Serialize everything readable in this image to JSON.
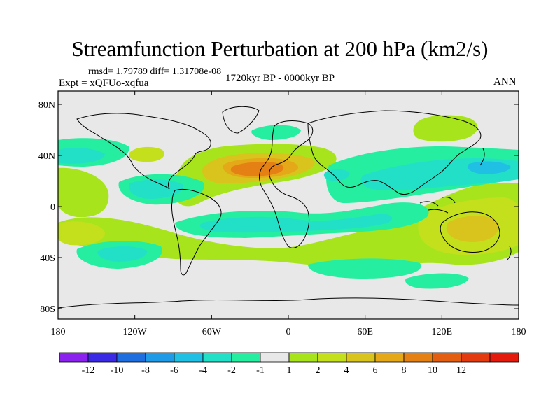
{
  "title": "Streamfunction Perturbation at 200 hPa (km2/s)",
  "stats": "rmsd= 1.79789 diff= 1.31708e-08",
  "experiment": "Expt = xQFUo-xqfua",
  "period": "1720kyr BP - 0000kyr BP",
  "season": "ANN",
  "map": {
    "lat_ticks": [
      "80N",
      "40N",
      "0",
      "40S",
      "80S"
    ],
    "lon_ticks": [
      "180",
      "120W",
      "60W",
      "0",
      "60E",
      "120E",
      "180"
    ],
    "background": "#e8e8e8"
  },
  "colorbar": {
    "colors": [
      "#8c22ee",
      "#3a2ae6",
      "#1e6ee0",
      "#1e9ae6",
      "#20c0e4",
      "#22e0c8",
      "#26eea0",
      "#e8e8e8",
      "#a8e41c",
      "#c4e01c",
      "#d8c41c",
      "#e4a818",
      "#e48014",
      "#e45e12",
      "#e43a10",
      "#e41a0c"
    ],
    "labels": [
      "-12",
      "-10",
      "-8",
      "-6",
      "-4",
      "-2",
      "-1",
      "1",
      "2",
      "4",
      "6",
      "8",
      "10",
      "12"
    ]
  }
}
